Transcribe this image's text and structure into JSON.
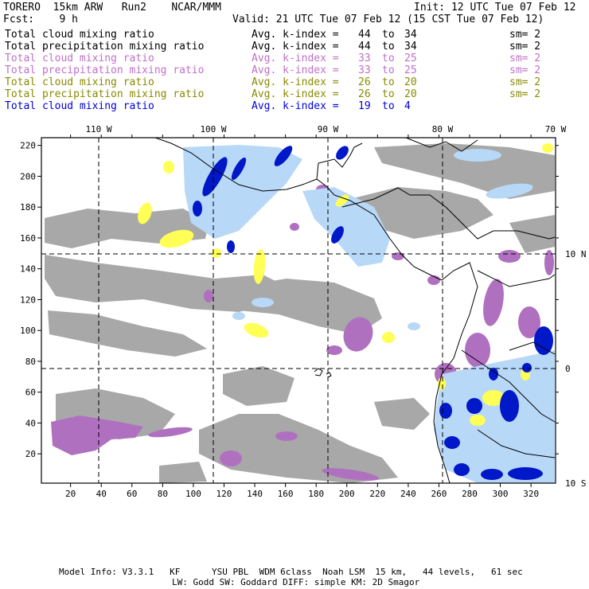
{
  "header": {
    "model": "TORERO  15km ARW   Run2    NCAR/MMM",
    "init": "Init: 12 UTC Tue 07 Feb 12",
    "fcst": "Fcst:    9 h",
    "valid": "Valid: 21 UTC Tue 07 Feb 12 (15 CST Tue 07 Feb 12)"
  },
  "legend": [
    {
      "field": "Total cloud mixing ratio",
      "k_label": "Avg. k-index =",
      "k_from": "44",
      "to": "to",
      "k_to": "34",
      "sm": "sm= 2",
      "color": "#000000"
    },
    {
      "field": "Total precipitation mixing ratio",
      "k_label": "Avg. k-index =",
      "k_from": "44",
      "to": "to",
      "k_to": "34",
      "sm": "sm= 2",
      "color": "#000000"
    },
    {
      "field": "Total cloud mixing ratio",
      "k_label": "Avg. k-index =",
      "k_from": "33",
      "to": "to",
      "k_to": "25",
      "sm": "sm= 2",
      "color": "#c070c8"
    },
    {
      "field": "Total precipitation mixing ratio",
      "k_label": "Avg. k-index =",
      "k_from": "33",
      "to": "to",
      "k_to": "25",
      "sm": "sm= 2",
      "color": "#c070c8"
    },
    {
      "field": "Total cloud mixing ratio",
      "k_label": "Avg. k-index =",
      "k_from": "26",
      "to": "to",
      "k_to": "20",
      "sm": "sm= 2",
      "color": "#8a8a00"
    },
    {
      "field": "Total precipitation mixing ratio",
      "k_label": "Avg. k-index =",
      "k_from": "26",
      "to": "to",
      "k_to": "20",
      "sm": "sm= 2",
      "color": "#8a8a00"
    },
    {
      "field": "Total cloud mixing ratio",
      "k_label": "Avg. k-index =",
      "k_from": "19",
      "to": "to",
      "k_to": "4",
      "sm": "",
      "color": "#0000dd"
    }
  ],
  "map": {
    "lon_labels": [
      "110 W",
      "100 W",
      "90 W",
      "80 W",
      "70 W"
    ],
    "lat_labels": [
      "10 N",
      "0",
      "10 S"
    ],
    "x_ticks": [
      20,
      40,
      60,
      80,
      100,
      120,
      140,
      160,
      180,
      200,
      220,
      240,
      260,
      280,
      300,
      320
    ],
    "y_ticks": [
      20,
      40,
      60,
      80,
      100,
      120,
      140,
      160,
      180,
      200,
      220
    ],
    "x_range": [
      1,
      336
    ],
    "y_range": [
      1,
      225
    ],
    "colors": {
      "gray": "#a8a8a8",
      "purple": "#b070c0",
      "yellow": "#ffff55",
      "light_blue": "#b8d8f8",
      "blue": "#0018c8",
      "coast": "#000000"
    }
  },
  "footer": {
    "line1": "Model Info: V3.3.1   KF      YSU PBL  WDM 6class  Noah LSM  15 km,   44 levels,   61 sec",
    "line2": "LW: Godd SW: Goddard DIFF: simple KM: 2D Smagor"
  }
}
